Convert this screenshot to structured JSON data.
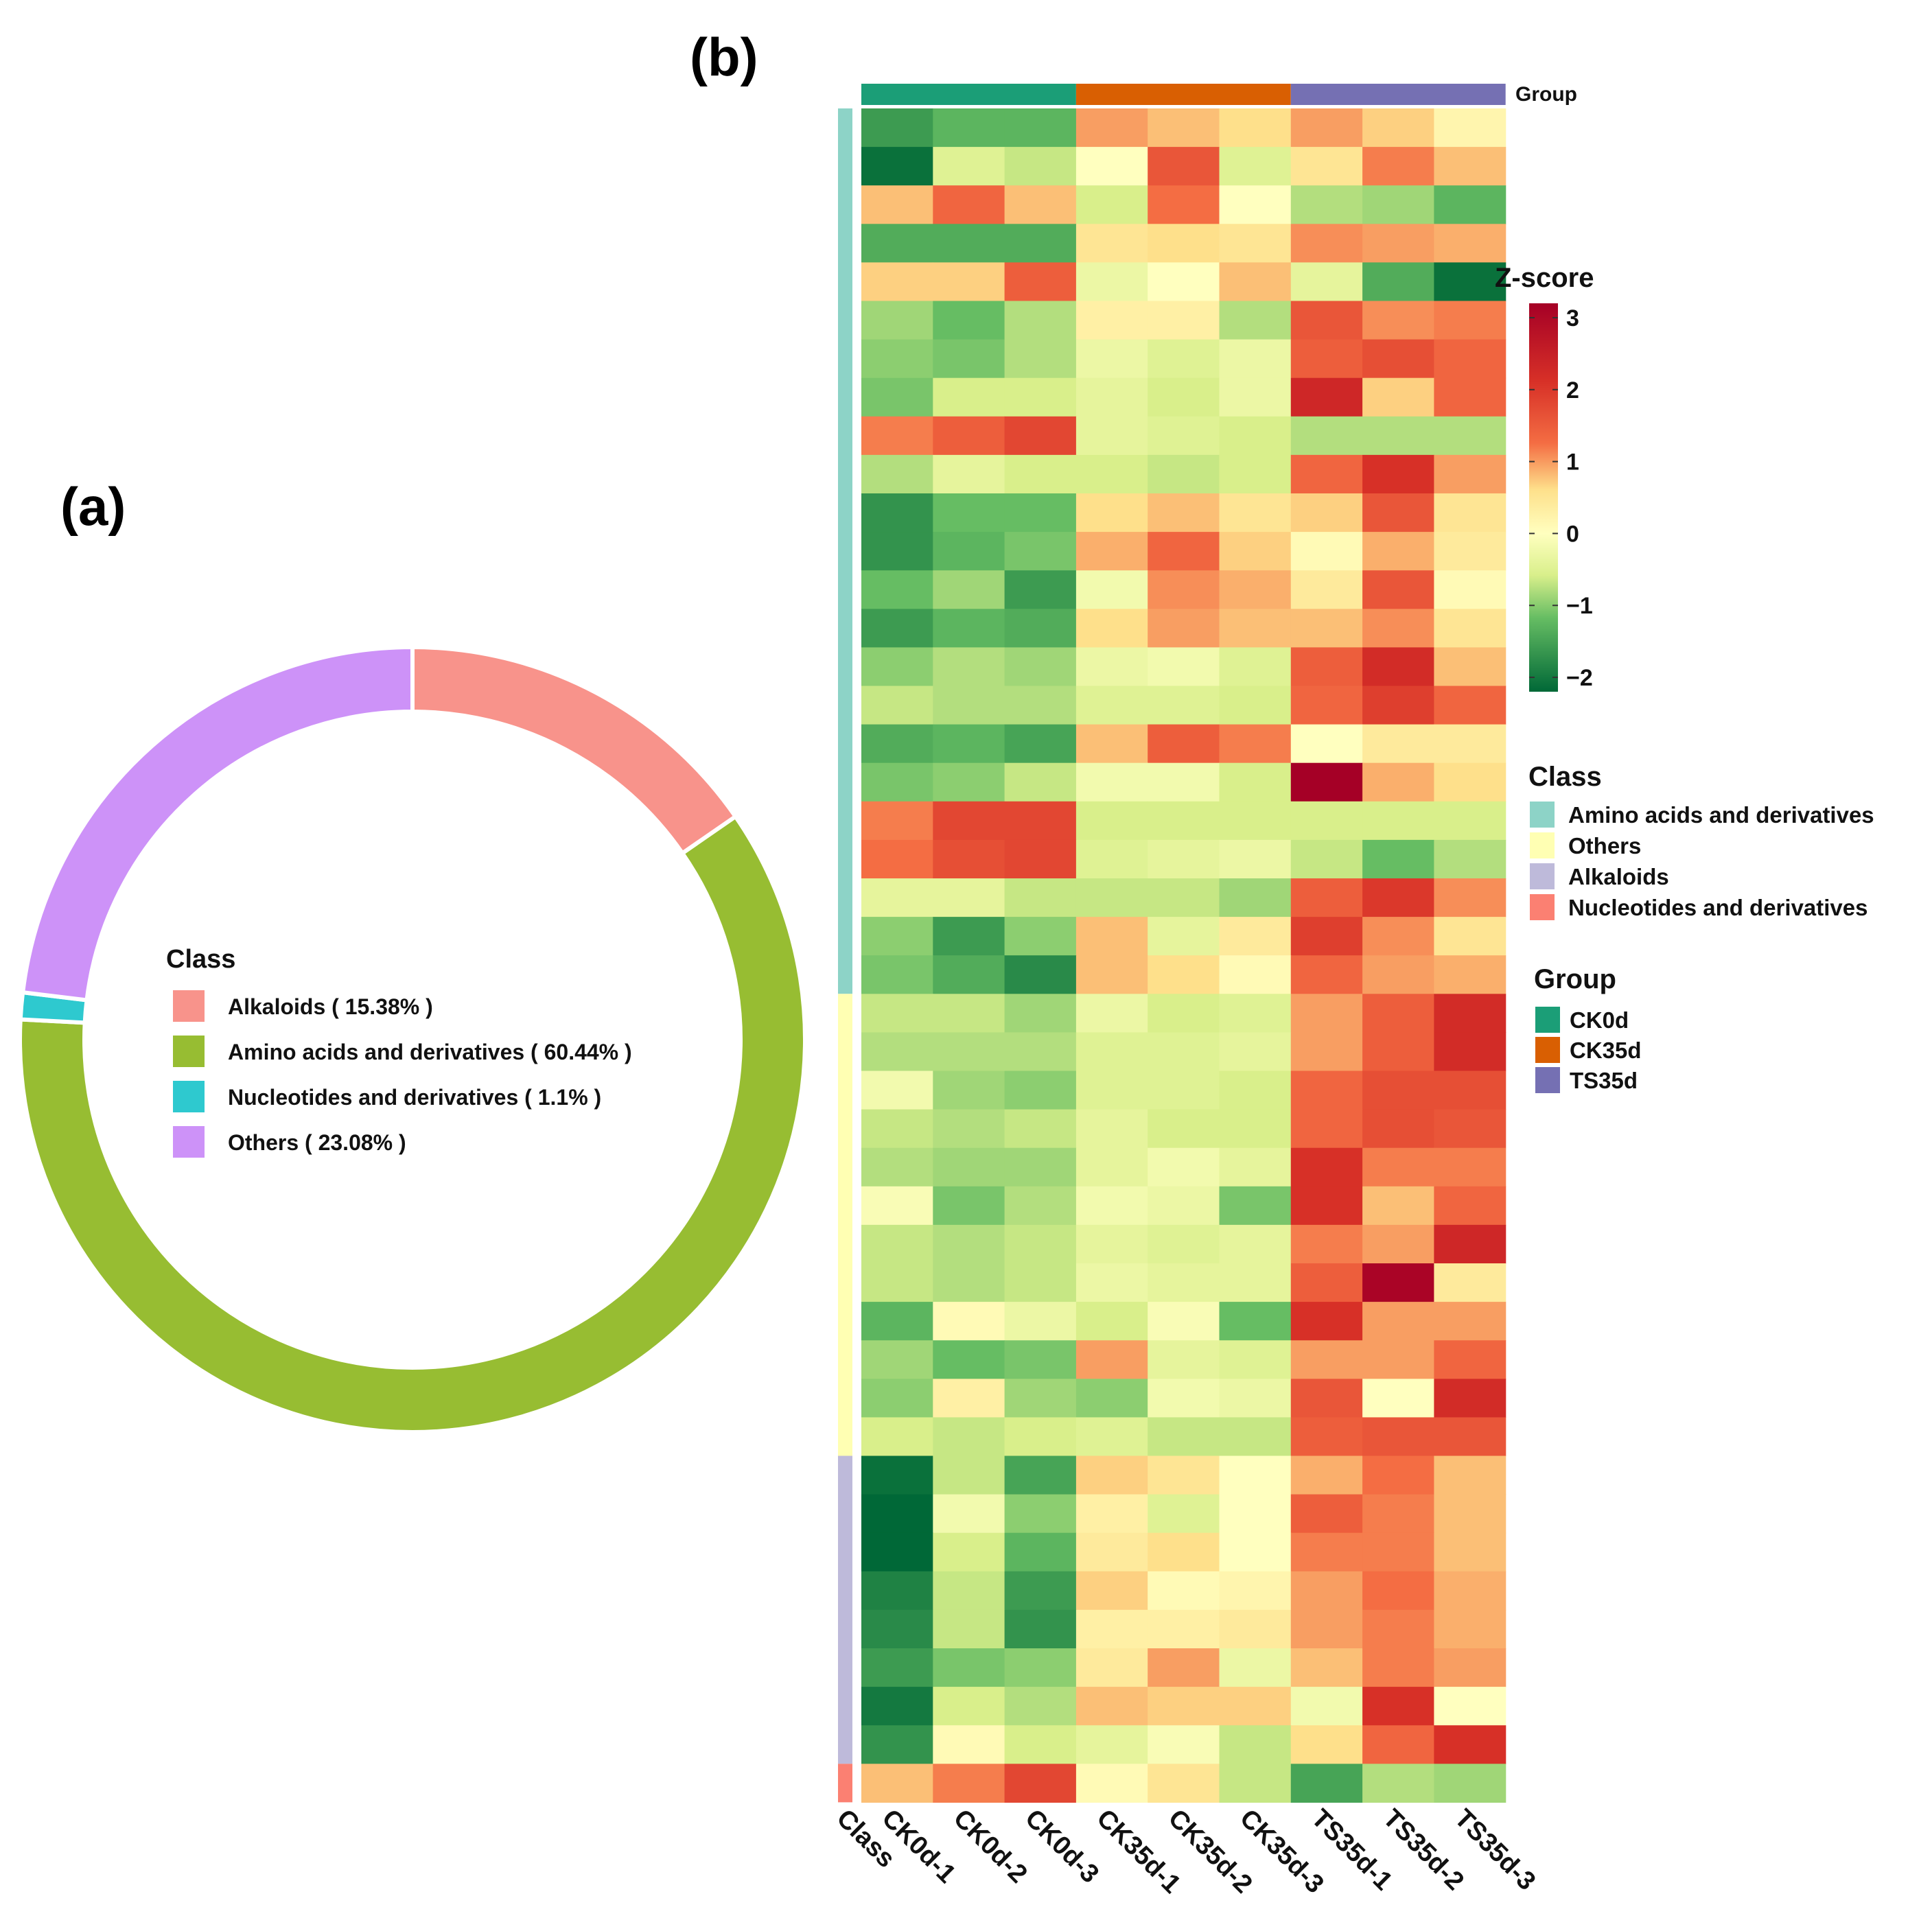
{
  "panel_labels": {
    "a": "(a)",
    "b": "(b)"
  },
  "colors": {
    "alkaloids": "#F8938B",
    "amino": "#97BD32",
    "nucleotides": "#2EC9CF",
    "others": "#CD92F8",
    "class_amino": "#8DD3C7",
    "class_others": "#FFFFB3",
    "class_alkaloids": "#BEBADA",
    "class_nucleotides": "#FB8072",
    "group_ck0d": "#1B9E77",
    "group_ck35d": "#D95F02",
    "group_ts35d": "#7570B3"
  },
  "chart_data": [
    {
      "type": "pie",
      "title": "Class",
      "legend_title": "Class",
      "slices": [
        {
          "key": "alkaloids",
          "label": "Alkaloids ( 15.38% )",
          "value": 15.38
        },
        {
          "key": "amino",
          "label": "Amino acids and derivatives ( 60.44% )",
          "value": 60.44
        },
        {
          "key": "nucleotides",
          "label": "Nucleotides and derivatives ( 1.1% )",
          "value": 1.1
        },
        {
          "key": "others",
          "label": "Others ( 23.08% )",
          "value": 23.08
        }
      ]
    },
    {
      "type": "heatmap",
      "columns": [
        "CK0d-1",
        "CK0d-2",
        "CK0d-3",
        "CK35d-1",
        "CK35d-2",
        "CK35d-3",
        "TS35d-1",
        "TS35d-2",
        "TS35d-3"
      ],
      "class_axis_label": "Class",
      "group_track_label": "Group",
      "groups": [
        {
          "name": "CK0d",
          "color_key": "group_ck0d",
          "span": 3
        },
        {
          "name": "CK35d",
          "color_key": "group_ck35d",
          "span": 3
        },
        {
          "name": "TS35d",
          "color_key": "group_ts35d",
          "span": 3
        }
      ],
      "row_classes": [
        {
          "name": "Amino acids and derivatives",
          "color_key": "class_amino",
          "rows": 23
        },
        {
          "name": "Others",
          "color_key": "class_others",
          "rows": 12
        },
        {
          "name": "Alkaloids",
          "color_key": "class_alkaloids",
          "rows": 8
        },
        {
          "name": "Nucleotides and derivatives",
          "color_key": "class_nucleotides",
          "rows": 1
        }
      ],
      "zscore_legend": {
        "title": "Z-score",
        "min": -2.2,
        "max": 3.2,
        "ticks": [
          3,
          2,
          1,
          0,
          -1,
          -2
        ]
      },
      "class_legend": {
        "title": "Class",
        "items": [
          {
            "label": "Amino acids and derivatives",
            "color_key": "class_amino"
          },
          {
            "label": "Others",
            "color_key": "class_others"
          },
          {
            "label": "Alkaloids",
            "color_key": "class_alkaloids"
          },
          {
            "label": "Nucleotides and derivatives",
            "color_key": "class_nucleotides"
          }
        ]
      },
      "group_legend": {
        "title": "Group",
        "items": [
          {
            "label": "CK0d",
            "color_key": "group_ck0d"
          },
          {
            "label": "CK35d",
            "color_key": "group_ck35d"
          },
          {
            "label": "TS35d",
            "color_key": "group_ts35d"
          }
        ]
      },
      "values": [
        [
          -1.6,
          -1.3,
          -1.3,
          1.0,
          0.8,
          0.6,
          1.0,
          0.7,
          0.2
        ],
        [
          -2.1,
          -0.5,
          -0.7,
          0.0,
          1.6,
          -0.5,
          0.5,
          1.2,
          0.8
        ],
        [
          0.8,
          1.4,
          0.8,
          -0.6,
          1.3,
          0.0,
          -0.8,
          -0.9,
          -1.3
        ],
        [
          -1.4,
          -1.4,
          -1.4,
          0.5,
          0.6,
          0.5,
          1.1,
          1.0,
          0.9
        ],
        [
          0.7,
          0.7,
          1.5,
          -0.3,
          0.0,
          0.8,
          -0.4,
          -1.4,
          -2.1
        ],
        [
          -0.9,
          -1.2,
          -0.8,
          0.3,
          0.3,
          -0.8,
          1.6,
          1.1,
          1.2
        ],
        [
          -1.0,
          -1.1,
          -0.8,
          -0.3,
          -0.5,
          -0.3,
          1.5,
          1.7,
          1.4
        ],
        [
          -1.1,
          -0.6,
          -0.6,
          -0.4,
          -0.6,
          -0.3,
          2.3,
          0.7,
          1.4
        ],
        [
          1.2,
          1.5,
          1.8,
          -0.4,
          -0.5,
          -0.6,
          -0.8,
          -0.8,
          -0.8
        ],
        [
          -0.8,
          -0.4,
          -0.6,
          -0.6,
          -0.7,
          -0.6,
          1.4,
          2.1,
          1.0
        ],
        [
          -1.7,
          -1.2,
          -1.2,
          0.6,
          0.8,
          0.5,
          0.7,
          1.6,
          0.5
        ],
        [
          -1.7,
          -1.3,
          -1.1,
          0.9,
          1.4,
          0.7,
          0.1,
          0.9,
          0.4
        ],
        [
          -1.2,
          -0.9,
          -1.6,
          -0.2,
          1.1,
          0.9,
          0.4,
          1.6,
          0.1
        ],
        [
          -1.6,
          -1.3,
          -1.4,
          0.6,
          1.0,
          0.8,
          0.8,
          1.1,
          0.5
        ],
        [
          -1.0,
          -0.8,
          -0.9,
          -0.3,
          -0.2,
          -0.5,
          1.5,
          2.2,
          0.8
        ],
        [
          -0.7,
          -0.8,
          -0.8,
          -0.5,
          -0.5,
          -0.6,
          1.4,
          1.9,
          1.4
        ],
        [
          -1.4,
          -1.3,
          -1.5,
          0.8,
          1.5,
          1.2,
          0.0,
          0.4,
          0.4
        ],
        [
          -1.1,
          -1.0,
          -0.7,
          -0.2,
          -0.2,
          -0.6,
          3.2,
          0.9,
          0.6
        ],
        [
          1.2,
          1.8,
          1.8,
          -0.6,
          -0.6,
          -0.6,
          -0.6,
          -0.6,
          -0.6
        ],
        [
          1.3,
          1.7,
          1.8,
          -0.5,
          -0.4,
          -0.3,
          -0.7,
          -1.2,
          -0.8
        ],
        [
          -0.4,
          -0.4,
          -0.7,
          -0.7,
          -0.7,
          -0.9,
          1.5,
          2.0,
          1.1
        ],
        [
          -1.0,
          -1.6,
          -1.0,
          0.8,
          -0.4,
          0.4,
          1.9,
          1.1,
          0.5
        ],
        [
          -1.1,
          -1.4,
          -1.8,
          0.8,
          0.6,
          0.1,
          1.4,
          1.0,
          0.9
        ],
        [
          -0.7,
          -0.7,
          -0.9,
          -0.3,
          -0.6,
          -0.5,
          1.0,
          1.5,
          2.2
        ],
        [
          -0.8,
          -0.8,
          -0.8,
          -0.5,
          -0.5,
          -0.4,
          1.0,
          1.5,
          2.2
        ],
        [
          -0.2,
          -0.9,
          -1.0,
          -0.5,
          -0.5,
          -0.6,
          1.4,
          1.7,
          1.7
        ],
        [
          -0.7,
          -0.8,
          -0.7,
          -0.4,
          -0.6,
          -0.6,
          1.4,
          1.7,
          1.6
        ],
        [
          -0.8,
          -0.9,
          -0.9,
          -0.4,
          -0.2,
          -0.4,
          2.1,
          1.2,
          1.2
        ],
        [
          -0.1,
          -1.1,
          -0.8,
          -0.2,
          -0.3,
          -1.1,
          2.1,
          0.8,
          1.4
        ],
        [
          -0.7,
          -0.8,
          -0.7,
          -0.4,
          -0.5,
          -0.4,
          1.2,
          1.0,
          2.3
        ],
        [
          -0.7,
          -0.8,
          -0.7,
          -0.3,
          -0.4,
          -0.4,
          1.5,
          3.1,
          0.4
        ],
        [
          -1.3,
          0.1,
          -0.3,
          -0.6,
          -0.1,
          -1.2,
          2.1,
          1.0,
          1.0
        ],
        [
          -0.9,
          -1.2,
          -1.1,
          1.0,
          -0.4,
          -0.5,
          1.0,
          1.0,
          1.4
        ],
        [
          -1.0,
          0.3,
          -0.9,
          -1.0,
          -0.2,
          -0.3,
          1.6,
          0.0,
          2.2
        ],
        [
          -0.6,
          -0.7,
          -0.6,
          -0.5,
          -0.7,
          -0.7,
          1.5,
          1.6,
          1.6
        ],
        [
          -2.1,
          -0.7,
          -1.5,
          0.7,
          0.5,
          0.0,
          0.9,
          1.3,
          0.8
        ],
        [
          -2.2,
          -0.2,
          -1.0,
          0.3,
          -0.5,
          0.0,
          1.5,
          1.2,
          0.8
        ],
        [
          -2.2,
          -0.6,
          -1.3,
          0.4,
          0.6,
          0.0,
          1.2,
          1.2,
          0.8
        ],
        [
          -1.9,
          -0.7,
          -1.6,
          0.7,
          0.1,
          0.2,
          1.0,
          1.3,
          0.9
        ],
        [
          -1.8,
          -0.7,
          -1.7,
          0.3,
          0.3,
          0.4,
          1.0,
          1.2,
          0.9
        ],
        [
          -1.6,
          -1.1,
          -1.0,
          0.4,
          1.0,
          -0.3,
          0.8,
          1.2,
          1.0
        ],
        [
          -2.0,
          -0.6,
          -0.8,
          0.8,
          0.7,
          0.7,
          -0.2,
          2.1,
          0.0
        ],
        [
          -1.7,
          0.1,
          -0.6,
          -0.4,
          -0.1,
          -0.7,
          0.6,
          1.4,
          2.1
        ],
        [
          0.8,
          1.2,
          1.8,
          0.1,
          0.5,
          -0.7,
          -1.5,
          -0.8,
          -0.9
        ]
      ]
    }
  ]
}
